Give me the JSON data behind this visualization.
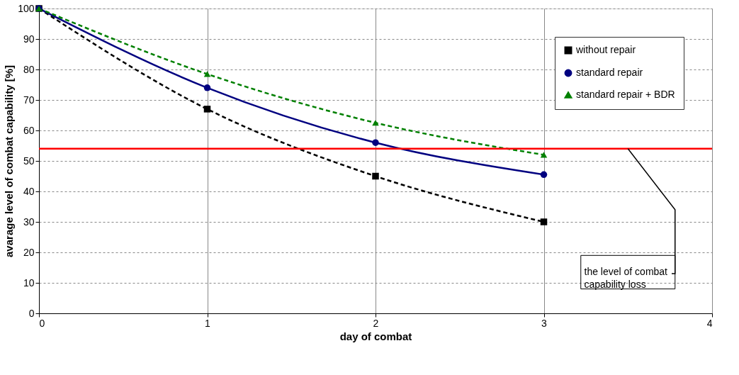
{
  "chart_data": {
    "type": "line",
    "xlabel": "day of combat",
    "ylabel": "avarage level of combat capability  [%]",
    "x": [
      0,
      1,
      2,
      3
    ],
    "series": [
      {
        "name": "without repair",
        "color": "#000000",
        "values": [
          100,
          67,
          45,
          30
        ],
        "marker": "square",
        "line_style": "dashed"
      },
      {
        "name": "standard repair",
        "color": "#000080",
        "values": [
          100,
          74,
          56,
          45.5
        ],
        "marker": "circle",
        "line_style": "solid"
      },
      {
        "name": "standard repair + BDR",
        "color": "#008000",
        "values": [
          100,
          78.5,
          62.5,
          52
        ],
        "marker": "triangle",
        "line_style": "dashed"
      }
    ],
    "xlim": [
      0,
      4
    ],
    "xticks": [
      0,
      1,
      2,
      3,
      4
    ],
    "ylim": [
      0,
      100
    ],
    "yticks": [
      0,
      10,
      20,
      30,
      40,
      50,
      60,
      70,
      80,
      90,
      100
    ],
    "ref_lines": [
      {
        "axis": "y",
        "value": 54,
        "color": "#ff0000"
      }
    ],
    "annotations": [
      {
        "text": "the level of combat capability loss",
        "x": 3.5,
        "y": 54
      }
    ],
    "grid": true,
    "legend": "top right"
  }
}
